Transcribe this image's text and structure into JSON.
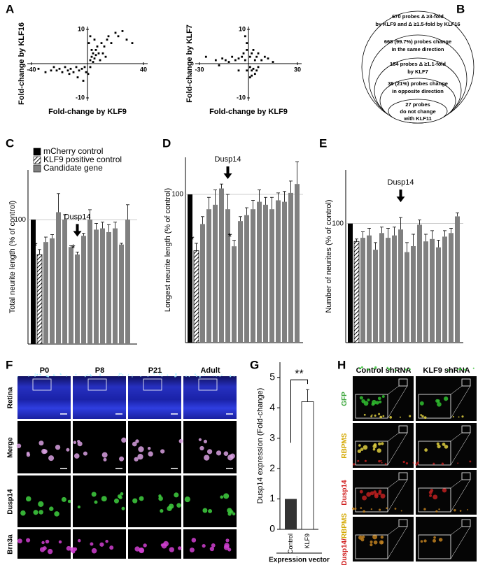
{
  "panel_labels": [
    "A",
    "B",
    "C",
    "D",
    "E",
    "F",
    "G",
    "H"
  ],
  "chart_data": [
    {
      "type": "scatter",
      "xlabel": "Fold-change by KLF9",
      "ylabel": "Fold-change by KLF16",
      "xlim": [
        -40,
        40
      ],
      "ylim": [
        -10,
        10
      ],
      "xticks": [
        -40,
        40
      ],
      "yticks": [
        -10,
        10
      ],
      "color": "#000000",
      "x": [
        2,
        3,
        4,
        5,
        6,
        7,
        8,
        10,
        12,
        14,
        15,
        17,
        20,
        22,
        25,
        28,
        32,
        4,
        6,
        9,
        11,
        3,
        1,
        2,
        5,
        13,
        -2,
        -4,
        -6,
        -8,
        -10,
        -12,
        -14,
        -16,
        -18,
        -20,
        -22,
        -24,
        -26,
        -30,
        -35,
        -7,
        -3,
        -13,
        -1,
        2,
        0.5
      ],
      "values": [
        1,
        2,
        3,
        1.5,
        4,
        5,
        3,
        6,
        5,
        7,
        8,
        6,
        9,
        8,
        9.5,
        7,
        6,
        0.5,
        2.5,
        1,
        3,
        4,
        6,
        8,
        7,
        2,
        -1,
        -1.5,
        -2,
        -1,
        -2.5,
        -1.5,
        -2,
        -1,
        -2.5,
        -1.5,
        -2,
        -1,
        -2,
        -2.5,
        -1.5,
        -4,
        -5,
        -3,
        -2.5,
        -1,
        -3
      ]
    },
    {
      "type": "scatter",
      "xlabel": "Fold-change by KLF9",
      "ylabel": "Fold-change by KLF7",
      "xlim": [
        -30,
        30
      ],
      "ylim": [
        -10,
        10
      ],
      "xticks": [
        -30,
        30
      ],
      "yticks": [
        -10,
        10
      ],
      "color": "#000000",
      "x": [
        -2,
        -4,
        -6,
        -8,
        -10,
        -12,
        -14,
        -16,
        -20,
        -26,
        -3,
        -1,
        -1,
        -2,
        1,
        2,
        3,
        4,
        5,
        6,
        8,
        10,
        12,
        15,
        1,
        2,
        3,
        4,
        5,
        6,
        1,
        2,
        -6,
        -1,
        -18
      ],
      "values": [
        1,
        2,
        1.5,
        1,
        2,
        0.5,
        1,
        1.5,
        1,
        2,
        3,
        4,
        6,
        8,
        2,
        3,
        4,
        1,
        2,
        3,
        1,
        2,
        1.5,
        0.5,
        -1,
        -2,
        -1.5,
        -3,
        -2,
        -1,
        -4,
        -3.5,
        -2,
        -2,
        -0.5
      ]
    },
    {
      "type": "bar",
      "ylabel": "Total neurite length (% of control)",
      "ylim": [
        0,
        140
      ],
      "yticks": [
        100
      ],
      "grid": true,
      "legend": true,
      "categories": [
        null,
        null,
        null,
        null,
        null,
        null,
        null,
        null,
        null,
        null,
        null,
        null,
        null,
        null,
        null,
        null
      ],
      "series": [
        {
          "name": "mCherry control",
          "color": "#000000",
          "values": [
            100,
            null,
            null,
            null,
            null,
            null,
            null,
            null,
            null,
            null,
            null,
            null,
            null,
            null,
            null,
            null
          ]
        },
        {
          "name": "KLF9 positive control",
          "color": "#ffffff",
          "hatch": true,
          "values": [
            null,
            72,
            null,
            null,
            null,
            null,
            null,
            null,
            null,
            null,
            null,
            null,
            null,
            null,
            null,
            null
          ],
          "errors": [
            null,
            4,
            null,
            null,
            null,
            null,
            null,
            null,
            null,
            null,
            null,
            null,
            null,
            null,
            null,
            null
          ]
        },
        {
          "name": "Candidate gene",
          "color": "#808080",
          "values": [
            null,
            null,
            82,
            85,
            106,
            100,
            78,
            72,
            87,
            100,
            92,
            93,
            90,
            93,
            80,
            100
          ],
          "errors": [
            null,
            null,
            4,
            3,
            15,
            4,
            1,
            2,
            2,
            8,
            5,
            5,
            6,
            5,
            1,
            12
          ]
        }
      ],
      "annotations": [
        {
          "text": "*",
          "index": 1
        },
        {
          "text": "*",
          "index": 7
        },
        {
          "text": "Dusp14",
          "index": 7
        }
      ]
    },
    {
      "type": "bar",
      "ylabel": "Longest neurite length (% of control)",
      "ylim": [
        0,
        125
      ],
      "yticks": [
        100
      ],
      "grid": true,
      "categories": [
        null,
        null,
        null,
        null,
        null,
        null,
        null,
        null,
        null,
        null,
        null,
        null,
        null,
        null,
        null,
        null,
        null,
        null
      ],
      "series": [
        {
          "color": "#000000",
          "values": [
            100,
            null,
            null,
            null,
            null,
            null,
            null,
            null,
            null,
            null,
            null,
            null,
            null,
            null,
            null,
            null,
            null,
            null
          ]
        },
        {
          "color": "#ffffff",
          "hatch": true,
          "values": [
            null,
            62,
            null,
            null,
            null,
            null,
            null,
            null,
            null,
            null,
            null,
            null,
            null,
            null,
            null,
            null,
            null,
            null
          ],
          "errors": [
            null,
            5,
            null,
            null,
            null,
            null,
            null,
            null,
            null,
            null,
            null,
            null,
            null,
            null,
            null,
            null,
            null,
            null
          ]
        },
        {
          "color": "#808080",
          "values": [
            null,
            null,
            80,
            90,
            93,
            104,
            90,
            65,
            82,
            86,
            90,
            95,
            93,
            90,
            96,
            95,
            101,
            107
          ],
          "errors": [
            null,
            null,
            5,
            8,
            10,
            3,
            10,
            4,
            3,
            5,
            6,
            8,
            5,
            8,
            5,
            7,
            8,
            15
          ]
        }
      ],
      "annotations": [
        {
          "text": "*",
          "index": 1
        },
        {
          "text": "*",
          "index": 7
        },
        {
          "text": "Dusp14",
          "index": 6
        }
      ]
    },
    {
      "type": "bar",
      "ylabel": "Number of neurites (% of control)",
      "ylim": [
        0,
        145
      ],
      "yticks": [
        100
      ],
      "grid": true,
      "categories": [
        null,
        null,
        null,
        null,
        null,
        null,
        null,
        null,
        null,
        null,
        null,
        null,
        null,
        null,
        null,
        null,
        null,
        null
      ],
      "series": [
        {
          "color": "#000000",
          "values": [
            100,
            null,
            null,
            null,
            null,
            null,
            null,
            null,
            null,
            null,
            null,
            null,
            null,
            null,
            null,
            null,
            null,
            null
          ]
        },
        {
          "color": "#ffffff",
          "hatch": true,
          "values": [
            null,
            85,
            null,
            null,
            null,
            null,
            null,
            null,
            null,
            null,
            null,
            null,
            null,
            null,
            null,
            null,
            null,
            null
          ],
          "errors": [
            null,
            2,
            null,
            null,
            null,
            null,
            null,
            null,
            null,
            null,
            null,
            null,
            null,
            null,
            null,
            null,
            null,
            null
          ]
        },
        {
          "color": "#808080",
          "values": [
            null,
            null,
            88,
            90,
            78,
            92,
            88,
            90,
            95,
            76,
            81,
            99,
            85,
            87,
            80,
            89,
            92,
            106
          ],
          "errors": [
            null,
            null,
            5,
            6,
            6,
            5,
            8,
            7,
            10,
            8,
            10,
            4,
            6,
            7,
            6,
            5,
            4,
            3
          ]
        }
      ],
      "annotations": [
        {
          "text": "Dusp14",
          "index": 8
        }
      ]
    },
    {
      "type": "bar",
      "ylabel": "Dusp14 expression (Fold-change)",
      "xlabel": "Expression vector",
      "ylim": [
        0,
        5.5
      ],
      "yticks": [
        0,
        1,
        2,
        3,
        4,
        5
      ],
      "grid": false,
      "categories": [
        "Control",
        "KLF9"
      ],
      "values": [
        1,
        4.2
      ],
      "errors": [
        null,
        0.4
      ],
      "colors": [
        "#333333",
        "#ffffff"
      ],
      "annotations": [
        {
          "text": "**"
        }
      ]
    }
  ],
  "venn": {
    "sets": [
      {
        "lines": [
          "670 probes Δ ≥3-fold",
          "by KLF9 and Δ ≥1.5-fold by KLF16"
        ]
      },
      {
        "lines": [
          "668 (99.7%) probes change",
          "in the same direction"
        ]
      },
      {
        "lines": [
          "184 probes Δ ≥1.1-fold",
          "by KLF7"
        ]
      },
      {
        "lines": [
          "38 (21%) probes change",
          "in opposite direction"
        ]
      },
      {
        "lines": [
          "27 probes",
          "do not change",
          "with KLF11"
        ]
      }
    ]
  },
  "panel_f": {
    "columns": [
      "P0",
      "P8",
      "P21",
      "Adult"
    ],
    "rows": [
      {
        "label": "Retina",
        "color": "#3b8fdc"
      },
      {
        "label": "Merge",
        "color": "#000000"
      },
      {
        "label": "Dusp14",
        "color": "#3aa63a"
      },
      {
        "label": "Brn3a",
        "color": "#b03ab0"
      }
    ]
  },
  "panel_h": {
    "columns": [
      "Control shRNA",
      "KLF9 shRNA"
    ],
    "rows": [
      {
        "parts": [
          {
            "label": "GFP",
            "color": "#3aa63a"
          }
        ]
      },
      {
        "parts": [
          {
            "label": "RBPMS",
            "color": "#d4a800"
          }
        ]
      },
      {
        "parts": [
          {
            "label": "Dusp14",
            "color": "#d02020"
          }
        ]
      },
      {
        "parts": [
          {
            "label": "Dusp14/",
            "color": "#d02020"
          },
          {
            "label": "RBPMS",
            "color": "#d4a800"
          }
        ]
      }
    ]
  }
}
